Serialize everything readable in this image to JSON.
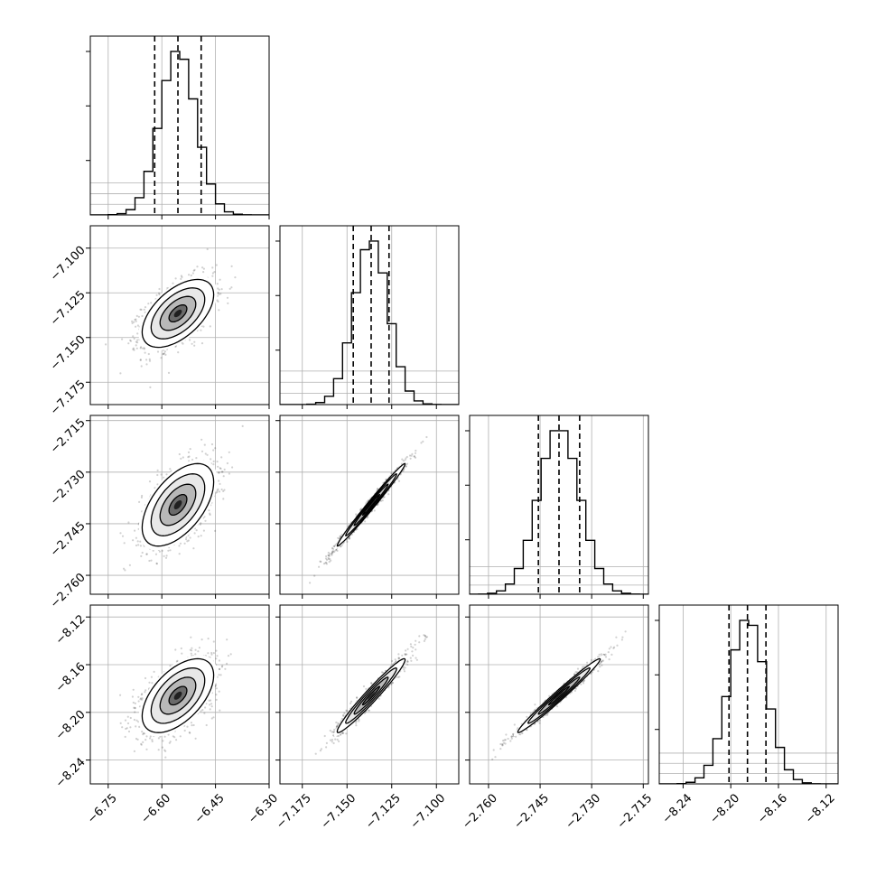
{
  "chart_data": {
    "type": "corner",
    "params": [
      {
        "range": [
          -6.8,
          -6.3
        ],
        "ticks": [
          "-6.75",
          "-6.60",
          "-6.45",
          "-6.30"
        ],
        "tick_values": [
          -6.75,
          -6.6,
          -6.45,
          -6.3
        ],
        "quantiles": [
          -6.62,
          -6.555,
          -6.49
        ],
        "mean": -6.555,
        "sd": 0.05
      },
      {
        "range": [
          -7.1875,
          -7.0875
        ],
        "ticks": [
          "-7.175",
          "-7.150",
          "-7.125",
          "-7.100"
        ],
        "tick_values": [
          -7.175,
          -7.15,
          -7.125,
          -7.1
        ],
        "quantiles": [
          -7.1465,
          -7.1365,
          -7.1265
        ],
        "mean": -7.1365,
        "sd": 0.0095
      },
      {
        "range": [
          -2.7655,
          -2.7135
        ],
        "ticks": [
          "-2.760",
          "-2.745",
          "-2.730",
          "-2.715"
        ],
        "tick_values": [
          -2.76,
          -2.745,
          -2.73,
          -2.715
        ],
        "quantiles": [
          -2.7455,
          -2.7395,
          -2.7335
        ],
        "mean": -2.7395,
        "sd": 0.006
      },
      {
        "range": [
          -8.26,
          -8.11
        ],
        "ticks": [
          "-8.24",
          "-8.20",
          "-8.16",
          "-8.12"
        ],
        "tick_values": [
          -8.24,
          -8.2,
          -8.16,
          -8.12
        ],
        "quantiles": [
          -8.2015,
          -8.186,
          -8.1705
        ],
        "mean": -8.186,
        "sd": 0.0155
      }
    ],
    "y_tick_labels": [
      null,
      [
        "-7.100",
        "-7.125",
        "-7.150",
        "-7.175"
      ],
      [
        "-2.715",
        "-2.730",
        "-2.745",
        "-2.760"
      ],
      [
        "-8.12",
        "-8.16",
        "-8.20",
        "-8.24"
      ]
    ],
    "y_tick_values": [
      null,
      [
        -7.1,
        -7.125,
        -7.15,
        -7.175
      ],
      [
        -2.715,
        -2.73,
        -2.745,
        -2.76
      ],
      [
        -8.12,
        -8.16,
        -8.2,
        -8.24
      ]
    ],
    "correlations": [
      [
        1,
        0.55,
        0.55,
        0.55
      ],
      [
        0.55,
        1,
        0.99,
        0.97
      ],
      [
        0.55,
        0.99,
        1,
        0.985
      ],
      [
        0.55,
        0.97,
        0.985,
        1
      ]
    ],
    "histogram_bins": 20,
    "quantile_levels": [
      0.16,
      0.5,
      0.84
    ],
    "contour_levels": [
      0.5,
      1.0,
      1.5,
      2.0
    ],
    "grid": true,
    "line_color": "#000000",
    "grid_color": "#b0b0b0",
    "point_color": "#000000"
  }
}
